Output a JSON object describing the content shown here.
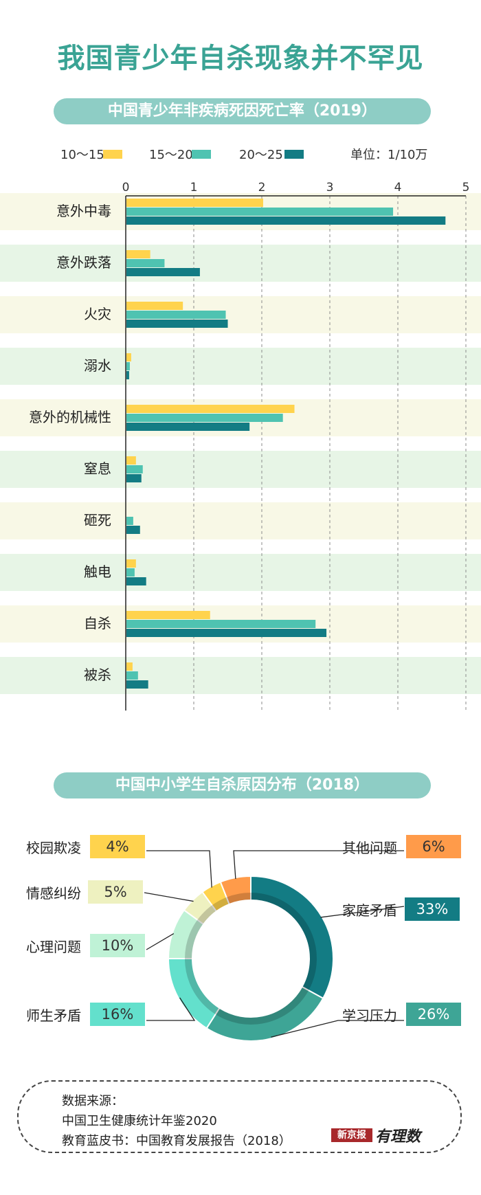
{
  "title": "我国青少年自杀现象并不罕见",
  "bar_section": {
    "title": "中国青少年非疾病死因死亡率（2019）",
    "unit": "单位：1/10万"
  },
  "donut_section": {
    "title": "中国中小学生自杀原因分布（2018）"
  },
  "colors": {
    "series_10_15": "#ffd34d",
    "series_15_20": "#4fc3b1",
    "series_20_25": "#137c84",
    "band_yellow": "#f8f8e6",
    "band_green": "#e7f5e6",
    "title_green": "#3aa394",
    "pill_bg": "#8ecdc5"
  },
  "chart_data": [
    {
      "type": "bar",
      "orientation": "horizontal",
      "title": "中国青少年非疾病死因死亡率（2019）",
      "unit": "单位：1/10万",
      "xlim": [
        0,
        5
      ],
      "xticks": [
        0,
        1,
        2,
        3,
        4,
        5
      ],
      "grid": true,
      "legend_position": "top",
      "categories": [
        "意外中毒",
        "意外跌落",
        "火灾",
        "溺水",
        "意外的机械性",
        "窒息",
        "砸死",
        "触电",
        "自杀",
        "被杀"
      ],
      "series": [
        {
          "name": "10～15",
          "color": "#ffd34d",
          "values": [
            2.02,
            0.36,
            0.84,
            0.08,
            2.48,
            0.15,
            0.0,
            0.15,
            1.24,
            0.1
          ]
        },
        {
          "name": "15～20",
          "color": "#4fc3b1",
          "values": [
            3.93,
            0.57,
            1.47,
            0.06,
            2.31,
            0.25,
            0.11,
            0.13,
            2.79,
            0.18
          ]
        },
        {
          "name": "20～25",
          "color": "#137c84",
          "values": [
            4.7,
            1.09,
            1.5,
            0.05,
            1.82,
            0.23,
            0.21,
            0.3,
            2.95,
            0.33
          ]
        }
      ]
    },
    {
      "type": "pie",
      "variant": "donut",
      "title": "中国中小学生自杀原因分布（2018）",
      "slices": [
        {
          "label": "家庭矛盾",
          "value": 33,
          "display": "33%",
          "color": "#137c84",
          "text_color": "#ffffff"
        },
        {
          "label": "学习压力",
          "value": 26,
          "display": "26%",
          "color": "#3ea596",
          "text_color": "#ffffff"
        },
        {
          "label": "师生矛盾",
          "value": 16,
          "display": "16%",
          "color": "#63e0cc",
          "text_color": "#333333"
        },
        {
          "label": "心理问题",
          "value": 10,
          "display": "10%",
          "color": "#bff2d6",
          "text_color": "#333333"
        },
        {
          "label": "情感纠纷",
          "value": 5,
          "display": "5%",
          "color": "#eef1c0",
          "text_color": "#333333"
        },
        {
          "label": "校园欺凌",
          "value": 4,
          "display": "4%",
          "color": "#ffd34d",
          "text_color": "#333333"
        },
        {
          "label": "其他问题",
          "value": 6,
          "display": "6%",
          "color": "#ff9b4a",
          "text_color": "#333333"
        }
      ]
    }
  ],
  "source": {
    "heading": "数据来源：",
    "lines": [
      "中国卫生健康统计年鉴2020",
      "教育蓝皮书：中国教育发展报告（2018）"
    ]
  },
  "brand": {
    "publisher": "新京报",
    "column": "有理数"
  }
}
